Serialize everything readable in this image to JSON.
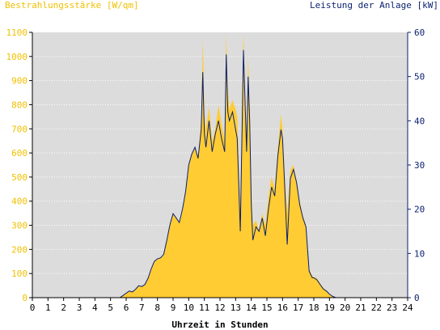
{
  "chart_data": {
    "type": "area",
    "title_left": "Bestrahlungsstärke [W/qm]",
    "title_right": "Leistung der Anlage [kW]",
    "xlabel": "Uhrzeit in Stunden",
    "xlim": [
      0,
      24
    ],
    "x_ticks": [
      "0",
      "1",
      "2",
      "3",
      "4",
      "5",
      "6",
      "7",
      "8",
      "9",
      "10",
      "11",
      "12",
      "13",
      "14",
      "15",
      "16",
      "17",
      "18",
      "19",
      "20",
      "21",
      "22",
      "23",
      "24"
    ],
    "ylim_left": [
      0,
      1100
    ],
    "y_ticks_left": [
      "0",
      "100",
      "200",
      "300",
      "400",
      "500",
      "600",
      "700",
      "800",
      "900",
      "1000",
      "1100"
    ],
    "ylim_right": [
      0,
      60
    ],
    "y_ticks_right": [
      "0",
      "10",
      "20",
      "30",
      "40",
      "50",
      "60"
    ],
    "grid": true,
    "series": [
      {
        "name": "Bestrahlungsstärke [W/qm]",
        "axis": "left",
        "style": "area",
        "color": "#ffcc33",
        "x": [
          0,
          5.6,
          5.8,
          6.0,
          6.2,
          6.4,
          6.6,
          6.8,
          7.0,
          7.2,
          7.4,
          7.6,
          7.8,
          8.0,
          8.2,
          8.4,
          8.6,
          8.8,
          9.0,
          9.2,
          9.4,
          9.6,
          9.8,
          10.0,
          10.2,
          10.4,
          10.6,
          10.8,
          10.9,
          11.0,
          11.1,
          11.3,
          11.5,
          11.7,
          11.9,
          12.1,
          12.3,
          12.4,
          12.5,
          12.6,
          12.8,
          13.0,
          13.1,
          13.3,
          13.5,
          13.7,
          13.8,
          13.9,
          14.0,
          14.1,
          14.3,
          14.5,
          14.7,
          14.9,
          15.1,
          15.3,
          15.5,
          15.7,
          15.9,
          16.0,
          16.1,
          16.3,
          16.5,
          16.7,
          16.9,
          17.1,
          17.3,
          17.5,
          17.7,
          17.9,
          18.0,
          18.2,
          18.4,
          18.6,
          18.8,
          19.0,
          19.2,
          19.4,
          19.6,
          19.8,
          20.0,
          24
        ],
        "values": [
          0,
          0,
          10,
          20,
          30,
          25,
          35,
          50,
          45,
          55,
          80,
          120,
          150,
          160,
          165,
          180,
          240,
          300,
          350,
          330,
          310,
          370,
          450,
          550,
          600,
          620,
          580,
          750,
          1070,
          760,
          700,
          790,
          650,
          700,
          800,
          720,
          650,
          1100,
          850,
          780,
          820,
          780,
          750,
          350,
          1100,
          600,
          1000,
          800,
          450,
          300,
          320,
          280,
          350,
          300,
          420,
          500,
          450,
          620,
          760,
          700,
          550,
          350,
          530,
          550,
          480,
          400,
          340,
          300,
          120,
          90,
          85,
          80,
          60,
          40,
          30,
          15,
          5,
          0,
          0,
          0,
          0,
          0
        ],
        "y": [
          0,
          0,
          10,
          20,
          30,
          25,
          35,
          50,
          45,
          55,
          80,
          120,
          150,
          160,
          165,
          180,
          240,
          300,
          350,
          330,
          310,
          370,
          450,
          550,
          600,
          620,
          580,
          750,
          1070,
          760,
          700,
          790,
          650,
          700,
          800,
          720,
          650,
          1100,
          850,
          780,
          820,
          780,
          750,
          350,
          1100,
          600,
          1000,
          800,
          450,
          300,
          320,
          280,
          350,
          300,
          420,
          500,
          450,
          620,
          760,
          700,
          550,
          350,
          530,
          550,
          480,
          400,
          340,
          300,
          120,
          90,
          85,
          80,
          60,
          40,
          30,
          15,
          5,
          0,
          0,
          0,
          0,
          0
        ]
      },
      {
        "name": "Leistung der Anlage [kW]",
        "axis": "right",
        "style": "line",
        "color": "#0a1f6e",
        "x": [
          0,
          5.6,
          5.8,
          6.0,
          6.2,
          6.4,
          6.6,
          6.8,
          7.0,
          7.2,
          7.4,
          7.6,
          7.8,
          8.0,
          8.2,
          8.4,
          8.6,
          8.8,
          9.0,
          9.2,
          9.4,
          9.6,
          9.8,
          10.0,
          10.2,
          10.4,
          10.6,
          10.8,
          10.9,
          11.0,
          11.1,
          11.3,
          11.5,
          11.7,
          11.9,
          12.1,
          12.3,
          12.4,
          12.5,
          12.6,
          12.8,
          13.0,
          13.1,
          13.3,
          13.5,
          13.7,
          13.8,
          13.9,
          14.0,
          14.1,
          14.3,
          14.5,
          14.7,
          14.9,
          15.1,
          15.3,
          15.5,
          15.7,
          15.9,
          16.0,
          16.1,
          16.3,
          16.5,
          16.7,
          16.9,
          17.1,
          17.3,
          17.5,
          17.7,
          17.9,
          18.0,
          18.2,
          18.4,
          18.6,
          18.8,
          19.0,
          19.2,
          19.4,
          19.6,
          19.8,
          20.0,
          24
        ],
        "values": [
          0,
          0,
          0.5,
          1,
          1.5,
          1.3,
          1.9,
          2.7,
          2.5,
          3,
          4.4,
          6.5,
          8.2,
          8.8,
          9,
          9.8,
          13,
          16.5,
          19,
          18,
          17,
          20,
          24,
          30,
          32.5,
          34,
          31.5,
          38,
          51,
          37,
          34,
          40,
          33,
          37,
          40,
          36,
          33,
          55,
          42,
          40,
          42,
          38,
          36,
          15,
          56,
          33,
          50,
          40,
          21,
          13,
          16,
          15,
          18,
          14,
          20,
          25,
          23,
          32,
          38,
          36,
          28,
          12,
          27,
          29,
          26,
          21,
          18,
          16,
          6,
          4.5,
          4.5,
          4,
          3,
          2,
          1.5,
          0.8,
          0.3,
          0,
          0,
          0,
          0,
          0
        ],
        "y": [
          0,
          0,
          0.5,
          1,
          1.5,
          1.3,
          1.9,
          2.7,
          2.5,
          3,
          4.4,
          6.5,
          8.2,
          8.8,
          9,
          9.8,
          13,
          16.5,
          19,
          18,
          17,
          20,
          24,
          30,
          32.5,
          34,
          31.5,
          38,
          51,
          37,
          34,
          40,
          33,
          37,
          40,
          36,
          33,
          55,
          42,
          40,
          42,
          38,
          36,
          15,
          56,
          33,
          50,
          40,
          21,
          13,
          16,
          15,
          18,
          14,
          20,
          25,
          23,
          32,
          38,
          36,
          28,
          12,
          27,
          29,
          26,
          21,
          18,
          16,
          6,
          4.5,
          4.5,
          4,
          3,
          2,
          1.5,
          0.8,
          0.3,
          0,
          0,
          0,
          0,
          0
        ]
      }
    ]
  },
  "colors": {
    "plot_background": "#dcdcdc",
    "area_fill": "#ffcc33",
    "line": "#0a1f6e",
    "left_axis_text": "#f0c000",
    "right_axis_text": "#0a1f6e"
  }
}
